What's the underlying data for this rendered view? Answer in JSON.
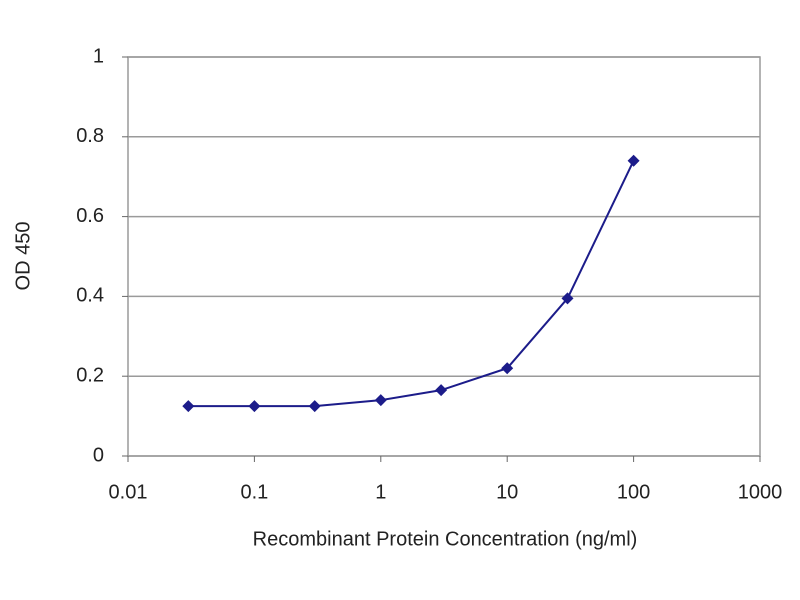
{
  "chart_data": {
    "type": "line",
    "x_label": "Recombinant Protein Concentration (ng/ml)",
    "y_label": "OD 450",
    "x": [
      0.03,
      0.1,
      0.3,
      1,
      3,
      10,
      30,
      100
    ],
    "values": [
      0.125,
      0.125,
      0.125,
      0.14,
      0.165,
      0.22,
      0.395,
      0.74
    ],
    "color": "#1c1c8a",
    "xlim": [
      0.01,
      1000
    ],
    "xticks": [
      0.01,
      0.1,
      1,
      10,
      100,
      1000
    ],
    "x_log": true,
    "ylim": [
      0,
      1
    ],
    "yticks": [
      0,
      0.2,
      0.4,
      0.6,
      0.8,
      1
    ],
    "grid": true
  }
}
